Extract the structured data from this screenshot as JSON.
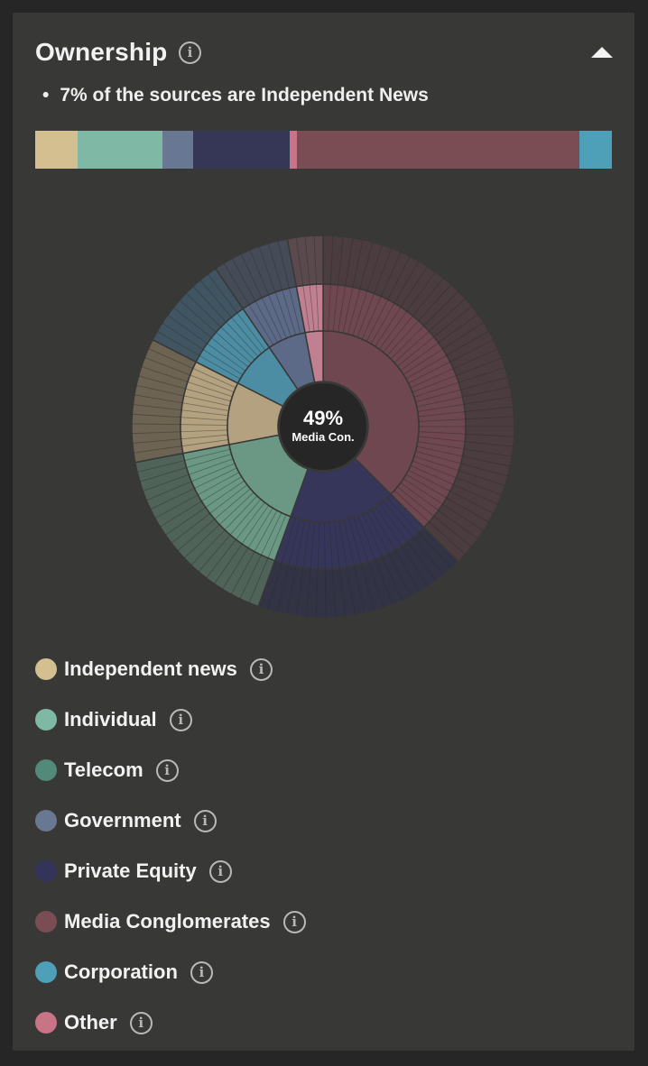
{
  "panel": {
    "title": "Ownership",
    "info_icon": "info-icon",
    "collapse_icon": "caret-up-icon",
    "summary": "7% of the sources are Independent News"
  },
  "stacked_bar": [
    {
      "category": "Independent news",
      "share": 0.073,
      "color": "#d4bf91"
    },
    {
      "category": "Individual",
      "share": 0.148,
      "color": "#7fb9a5"
    },
    {
      "category": "Government",
      "share": 0.053,
      "color": "#687792"
    },
    {
      "category": "Private Equity",
      "share": 0.167,
      "color": "#363657"
    },
    {
      "category": "Other",
      "share": 0.013,
      "color": "#c97387"
    },
    {
      "category": "Media Conglomerates",
      "share": 0.49,
      "color": "#7a4d55"
    },
    {
      "category": "Corporation",
      "share": 0.056,
      "color": "#4e9fb8"
    }
  ],
  "chart_data": {
    "type": "sunburst",
    "center_value": "49%",
    "center_label": "Media Con.",
    "inner_ring": [
      {
        "category": "Media Conglomerates",
        "share": 0.375,
        "color": "#6e4750"
      },
      {
        "category": "Private Equity",
        "share": 0.18,
        "color": "#36365a"
      },
      {
        "category": "Telecom",
        "share": 0.165,
        "color": "#6a9884"
      },
      {
        "category": "Independent news",
        "share": 0.105,
        "color": "#b3a17f"
      },
      {
        "category": "Corporation",
        "share": 0.08,
        "color": "#4c8da3"
      },
      {
        "category": "Government",
        "share": 0.065,
        "color": "#5c6a87"
      },
      {
        "category": "Other",
        "share": 0.03,
        "color": "#c08091"
      }
    ],
    "outer_ring": [
      {
        "category": "Media Conglomerates",
        "share": 0.375,
        "color": "#4a3c3f"
      },
      {
        "category": "Private Equity",
        "share": 0.18,
        "color": "#333346"
      },
      {
        "category": "Telecom",
        "share": 0.165,
        "color": "#4f6359"
      },
      {
        "category": "Independent news",
        "share": 0.105,
        "color": "#6c6352"
      },
      {
        "category": "Corporation",
        "share": 0.08,
        "color": "#405561"
      },
      {
        "category": "Government",
        "share": 0.065,
        "color": "#464b58"
      },
      {
        "category": "Other",
        "share": 0.03,
        "color": "#5a4a4e"
      }
    ]
  },
  "legend": [
    {
      "label": "Independent news",
      "color": "#d4bf91"
    },
    {
      "label": "Individual",
      "color": "#7fb9a5"
    },
    {
      "label": "Telecom",
      "color": "#538978"
    },
    {
      "label": "Government",
      "color": "#687792"
    },
    {
      "label": "Private Equity",
      "color": "#34345a"
    },
    {
      "label": "Media Conglomerates",
      "color": "#7a4d55"
    },
    {
      "label": "Corporation",
      "color": "#4e9fb8"
    },
    {
      "label": "Other",
      "color": "#c97387"
    }
  ]
}
